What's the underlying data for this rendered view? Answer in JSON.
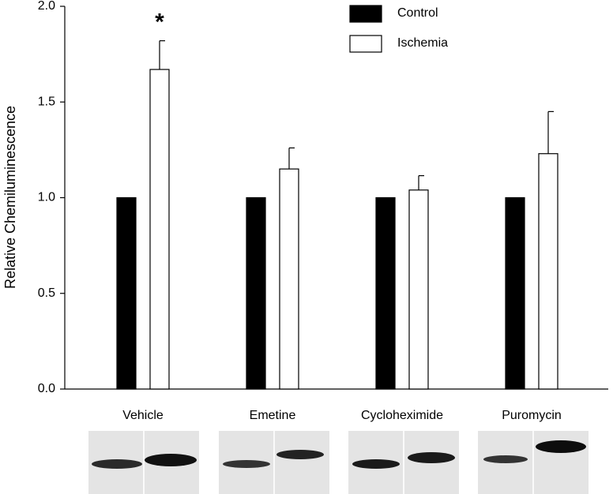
{
  "chart_data": {
    "type": "bar",
    "y_label": "Relative Chemiluminescence",
    "categories": [
      "Vehicle",
      "Emetine",
      "Cycloheximide",
      "Puromycin"
    ],
    "series": [
      {
        "name": "Control",
        "color": "#000000",
        "values": [
          1.0,
          1.0,
          1.0,
          1.0
        ]
      },
      {
        "name": "Ischemia",
        "color": "#ffffff",
        "values": [
          1.67,
          1.15,
          1.04,
          1.23
        ],
        "errors": [
          0.15,
          0.11,
          0.075,
          0.22
        ]
      }
    ],
    "annotations": [
      {
        "text": "*"
      }
    ],
    "ylim": [
      0,
      2
    ],
    "yticks": [
      {
        "value": 0,
        "label": "0.0"
      },
      0.5,
      {
        "value": 1,
        "label": "1.0"
      },
      1.5,
      {
        "value": 2,
        "label": "2.0"
      }
    ],
    "legend": "top-right"
  }
}
